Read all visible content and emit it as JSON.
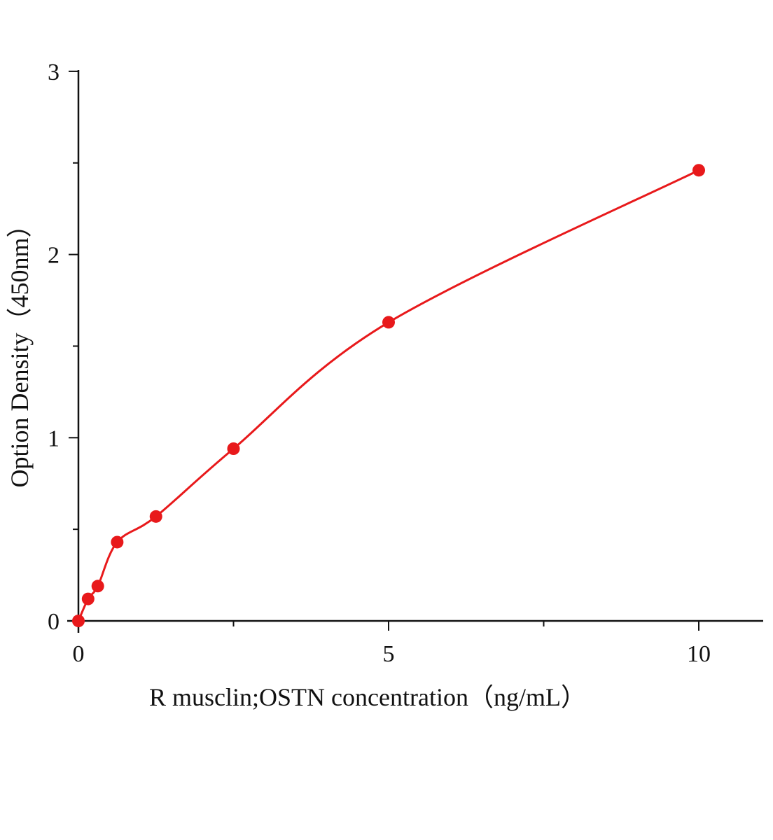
{
  "chart_data": {
    "type": "scatter",
    "title": "",
    "xlabel": "R musclin;OSTN concentration（ng/mL）",
    "ylabel": "Option Density（450nm）",
    "xlim": [
      0,
      11
    ],
    "ylim": [
      0,
      3
    ],
    "x_ticks": [
      "0",
      "5",
      "10"
    ],
    "y_ticks": [
      "0",
      "1",
      "2",
      "3"
    ],
    "grid": false,
    "legend": "none",
    "marker_color": "#e8191b",
    "line_color": "#e8191b",
    "series": [
      {
        "x": [
          0,
          0.156,
          0.3125,
          0.625,
          1.25,
          2.5,
          5,
          10
        ],
        "y": [
          0.0,
          0.12,
          0.19,
          0.43,
          0.57,
          0.94,
          1.63,
          2.46
        ],
        "fit_curve": true
      }
    ]
  }
}
